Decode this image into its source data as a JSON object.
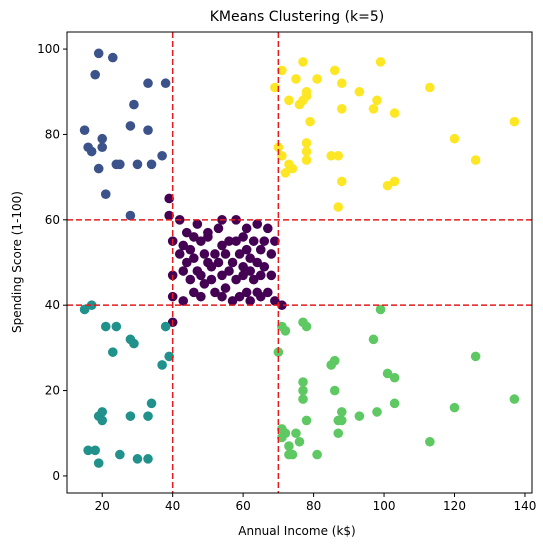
{
  "chart_data": {
    "type": "scatter",
    "title": "KMeans Clustering (k=5)",
    "xlabel": "Annual Income (k$)",
    "ylabel": "Spending Score (1-100)",
    "xlim": [
      10,
      142
    ],
    "ylim": [
      -4,
      104
    ],
    "x_ticks": [
      20,
      40,
      60,
      80,
      100,
      120,
      140
    ],
    "y_ticks": [
      0,
      20,
      40,
      60,
      80,
      100
    ],
    "grid": false,
    "reference_lines": {
      "color": "#e41a1c",
      "style": "dashed",
      "vertical": [
        40,
        70
      ],
      "horizontal": [
        40,
        60
      ]
    },
    "series": [
      {
        "color": "#440154",
        "points": [
          [
            39,
            65
          ],
          [
            39,
            61
          ],
          [
            40,
            55
          ],
          [
            40,
            47
          ],
          [
            40,
            42
          ],
          [
            40,
            36
          ],
          [
            42,
            52
          ],
          [
            42,
            60
          ],
          [
            43,
            54
          ],
          [
            43,
            48
          ],
          [
            43,
            41
          ],
          [
            44,
            50
          ],
          [
            44,
            57
          ],
          [
            45,
            46
          ],
          [
            45,
            53
          ],
          [
            46,
            56
          ],
          [
            46,
            51
          ],
          [
            46,
            43
          ],
          [
            47,
            59
          ],
          [
            47,
            48
          ],
          [
            48,
            47
          ],
          [
            48,
            55
          ],
          [
            48,
            42
          ],
          [
            49,
            52
          ],
          [
            49,
            45
          ],
          [
            50,
            50
          ],
          [
            50,
            56
          ],
          [
            50,
            57
          ],
          [
            51,
            46
          ],
          [
            51,
            49
          ],
          [
            52,
            52
          ],
          [
            52,
            43
          ],
          [
            53,
            58
          ],
          [
            53,
            50
          ],
          [
            54,
            47
          ],
          [
            54,
            54
          ],
          [
            54,
            42
          ],
          [
            54,
            60
          ],
          [
            55,
            52
          ],
          [
            55,
            44
          ],
          [
            56,
            48
          ],
          [
            56,
            55
          ],
          [
            57,
            50
          ],
          [
            57,
            41
          ],
          [
            58,
            46
          ],
          [
            58,
            55
          ],
          [
            58,
            60
          ],
          [
            59,
            52
          ],
          [
            59,
            42
          ],
          [
            60,
            49
          ],
          [
            60,
            56
          ],
          [
            60,
            47
          ],
          [
            61,
            43
          ],
          [
            61,
            53
          ],
          [
            61,
            58
          ],
          [
            62,
            48
          ],
          [
            62,
            51
          ],
          [
            62,
            41
          ],
          [
            63,
            55
          ],
          [
            63,
            46
          ],
          [
            64,
            43
          ],
          [
            64,
            50
          ],
          [
            64,
            59
          ],
          [
            65,
            47
          ],
          [
            65,
            53
          ],
          [
            65,
            42
          ],
          [
            66,
            49
          ],
          [
            66,
            55
          ],
          [
            67,
            43
          ],
          [
            67,
            58
          ],
          [
            68,
            47
          ],
          [
            68,
            52
          ],
          [
            69,
            55
          ],
          [
            69,
            41
          ],
          [
            71,
            40
          ]
        ]
      },
      {
        "color": "#3b528b",
        "points": [
          [
            15,
            81
          ],
          [
            16,
            77
          ],
          [
            17,
            76
          ],
          [
            18,
            94
          ],
          [
            19,
            99
          ],
          [
            19,
            72
          ],
          [
            20,
            77
          ],
          [
            20,
            79
          ],
          [
            21,
            66
          ],
          [
            23,
            98
          ],
          [
            24,
            73
          ],
          [
            25,
            73
          ],
          [
            28,
            82
          ],
          [
            28,
            61
          ],
          [
            29,
            87
          ],
          [
            30,
            73
          ],
          [
            33,
            81
          ],
          [
            33,
            92
          ],
          [
            34,
            73
          ],
          [
            37,
            75
          ],
          [
            38,
            92
          ]
        ]
      },
      {
        "color": "#21918c",
        "points": [
          [
            15,
            39
          ],
          [
            16,
            6
          ],
          [
            17,
            40
          ],
          [
            18,
            6
          ],
          [
            19,
            3
          ],
          [
            19,
            14
          ],
          [
            20,
            15
          ],
          [
            20,
            13
          ],
          [
            21,
            35
          ],
          [
            23,
            29
          ],
          [
            24,
            35
          ],
          [
            25,
            5
          ],
          [
            28,
            14
          ],
          [
            28,
            32
          ],
          [
            29,
            31
          ],
          [
            30,
            4
          ],
          [
            33,
            4
          ],
          [
            33,
            14
          ],
          [
            34,
            17
          ],
          [
            37,
            26
          ],
          [
            38,
            35
          ],
          [
            39,
            28
          ]
        ]
      },
      {
        "color": "#5ec962",
        "points": [
          [
            70,
            29
          ],
          [
            71,
            35
          ],
          [
            72,
            34
          ],
          [
            71,
            11
          ],
          [
            71,
            9
          ],
          [
            72,
            10
          ],
          [
            73,
            5
          ],
          [
            73,
            7
          ],
          [
            74,
            5
          ],
          [
            75,
            10
          ],
          [
            76,
            8
          ],
          [
            77,
            36
          ],
          [
            77,
            20
          ],
          [
            77,
            22
          ],
          [
            77,
            18
          ],
          [
            78,
            35
          ],
          [
            78,
            13
          ],
          [
            81,
            5
          ],
          [
            85,
            26
          ],
          [
            86,
            27
          ],
          [
            86,
            20
          ],
          [
            87,
            10
          ],
          [
            87,
            13
          ],
          [
            88,
            13
          ],
          [
            88,
            15
          ],
          [
            93,
            14
          ],
          [
            97,
            32
          ],
          [
            98,
            15
          ],
          [
            99,
            39
          ],
          [
            101,
            24
          ],
          [
            103,
            23
          ],
          [
            103,
            17
          ],
          [
            113,
            8
          ],
          [
            120,
            16
          ],
          [
            126,
            28
          ],
          [
            137,
            18
          ]
        ]
      },
      {
        "color": "#fde725",
        "points": [
          [
            69,
            91
          ],
          [
            70,
            77
          ],
          [
            71,
            95
          ],
          [
            71,
            75
          ],
          [
            72,
            71
          ],
          [
            73,
            88
          ],
          [
            73,
            73
          ],
          [
            74,
            72
          ],
          [
            75,
            93
          ],
          [
            76,
            87
          ],
          [
            77,
            97
          ],
          [
            77,
            88
          ],
          [
            78,
            90
          ],
          [
            78,
            76
          ],
          [
            78,
            89
          ],
          [
            78,
            78
          ],
          [
            78,
            74
          ],
          [
            79,
            83
          ],
          [
            81,
            93
          ],
          [
            85,
            75
          ],
          [
            86,
            95
          ],
          [
            87,
            63
          ],
          [
            87,
            75
          ],
          [
            88,
            92
          ],
          [
            88,
            86
          ],
          [
            88,
            69
          ],
          [
            93,
            90
          ],
          [
            97,
            86
          ],
          [
            98,
            88
          ],
          [
            99,
            97
          ],
          [
            101,
            68
          ],
          [
            103,
            85
          ],
          [
            103,
            69
          ],
          [
            113,
            91
          ],
          [
            120,
            79
          ],
          [
            126,
            74
          ],
          [
            137,
            83
          ]
        ]
      }
    ]
  }
}
